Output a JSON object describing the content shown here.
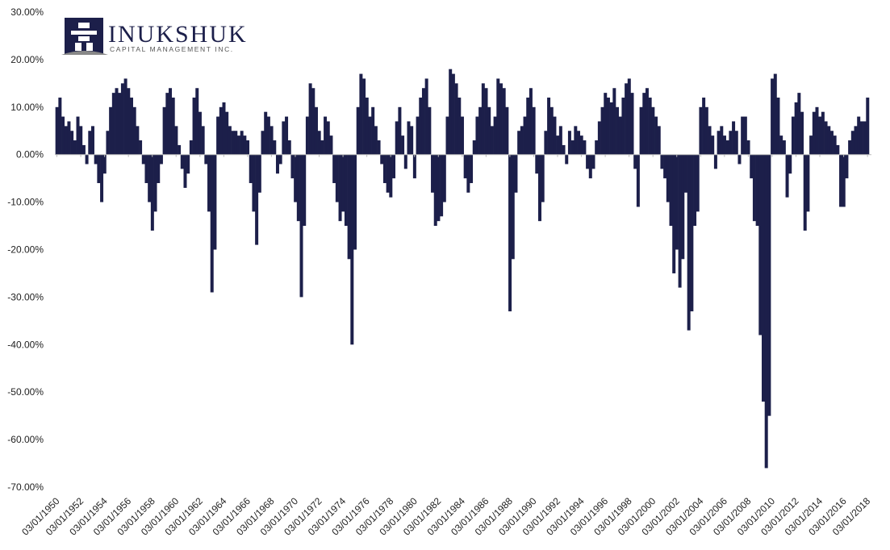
{
  "logo": {
    "name": "INUKSHUK",
    "tagline": "CAPITAL MANAGEMENT INC."
  },
  "chart_data": {
    "type": "bar",
    "color": "#1c1f4a",
    "xlim": [
      1950,
      2018.5
    ],
    "ylim": [
      -70,
      30
    ],
    "yticks": [
      {
        "value": 30,
        "label": "30.00%"
      },
      {
        "value": 20,
        "label": "20.00%"
      },
      {
        "value": 10,
        "label": "10.00%"
      },
      {
        "value": 0,
        "label": "0.00%"
      },
      {
        "value": -10,
        "label": "-10.00%"
      },
      {
        "value": -20,
        "label": "-20.00%"
      },
      {
        "value": -30,
        "label": "-30.00%"
      },
      {
        "value": -40,
        "label": "-40.00%"
      },
      {
        "value": -50,
        "label": "-50.00%"
      },
      {
        "value": -60,
        "label": "-60.00%"
      },
      {
        "value": -70,
        "label": "-70.00%"
      }
    ],
    "xticks": [
      {
        "value": 1950.17,
        "label": "03/01/1950"
      },
      {
        "value": 1952.17,
        "label": "03/01/1952"
      },
      {
        "value": 1954.17,
        "label": "03/01/1954"
      },
      {
        "value": 1956.17,
        "label": "03/01/1956"
      },
      {
        "value": 1958.17,
        "label": "03/01/1958"
      },
      {
        "value": 1960.17,
        "label": "03/01/1960"
      },
      {
        "value": 1962.17,
        "label": "03/01/1962"
      },
      {
        "value": 1964.17,
        "label": "03/01/1964"
      },
      {
        "value": 1966.17,
        "label": "03/01/1966"
      },
      {
        "value": 1968.17,
        "label": "03/01/1968"
      },
      {
        "value": 1970.17,
        "label": "03/01/1970"
      },
      {
        "value": 1972.17,
        "label": "03/01/1972"
      },
      {
        "value": 1974.17,
        "label": "03/01/1974"
      },
      {
        "value": 1976.17,
        "label": "03/01/1976"
      },
      {
        "value": 1978.17,
        "label": "03/01/1978"
      },
      {
        "value": 1980.17,
        "label": "03/01/1980"
      },
      {
        "value": 1982.17,
        "label": "03/01/1982"
      },
      {
        "value": 1984.17,
        "label": "03/01/1984"
      },
      {
        "value": 1986.17,
        "label": "03/01/1986"
      },
      {
        "value": 1988.17,
        "label": "03/01/1988"
      },
      {
        "value": 1990.17,
        "label": "03/01/1990"
      },
      {
        "value": 1992.17,
        "label": "03/01/1992"
      },
      {
        "value": 1994.17,
        "label": "03/01/1994"
      },
      {
        "value": 1996.17,
        "label": "03/01/1996"
      },
      {
        "value": 1998.17,
        "label": "03/01/1998"
      },
      {
        "value": 2000.17,
        "label": "03/01/2000"
      },
      {
        "value": 2002.17,
        "label": "03/01/2002"
      },
      {
        "value": 2004.17,
        "label": "03/01/2004"
      },
      {
        "value": 2006.17,
        "label": "03/01/2006"
      },
      {
        "value": 2008.17,
        "label": "03/01/2008"
      },
      {
        "value": 2010.17,
        "label": "03/01/2010"
      },
      {
        "value": 2012.17,
        "label": "03/01/2012"
      },
      {
        "value": 2014.17,
        "label": "03/01/2014"
      },
      {
        "value": 2016.17,
        "label": "03/01/2016"
      },
      {
        "value": 2018.17,
        "label": "03/01/2018"
      }
    ],
    "x": [
      1950.17,
      1950.42,
      1950.67,
      1950.92,
      1951.17,
      1951.42,
      1951.67,
      1951.92,
      1952.17,
      1952.42,
      1952.67,
      1952.92,
      1953.17,
      1953.42,
      1953.67,
      1953.92,
      1954.17,
      1954.42,
      1954.67,
      1954.92,
      1955.17,
      1955.42,
      1955.67,
      1955.92,
      1956.17,
      1956.42,
      1956.67,
      1956.92,
      1957.17,
      1957.42,
      1957.67,
      1957.92,
      1958.17,
      1958.42,
      1958.67,
      1958.92,
      1959.17,
      1959.42,
      1959.67,
      1959.92,
      1960.17,
      1960.42,
      1960.67,
      1960.92,
      1961.17,
      1961.42,
      1961.67,
      1961.92,
      1962.17,
      1962.42,
      1962.67,
      1962.92,
      1963.17,
      1963.42,
      1963.67,
      1963.92,
      1964.17,
      1964.42,
      1964.67,
      1964.92,
      1965.17,
      1965.42,
      1965.67,
      1965.92,
      1966.17,
      1966.42,
      1966.67,
      1966.92,
      1967.17,
      1967.42,
      1967.67,
      1967.92,
      1968.17,
      1968.42,
      1968.67,
      1968.92,
      1969.17,
      1969.42,
      1969.67,
      1969.92,
      1970.17,
      1970.42,
      1970.67,
      1970.92,
      1971.17,
      1971.42,
      1971.67,
      1971.92,
      1972.17,
      1972.42,
      1972.67,
      1972.92,
      1973.17,
      1973.42,
      1973.67,
      1973.92,
      1974.17,
      1974.42,
      1974.67,
      1974.92,
      1975.17,
      1975.42,
      1975.67,
      1975.92,
      1976.17,
      1976.42,
      1976.67,
      1976.92,
      1977.17,
      1977.42,
      1977.67,
      1977.92,
      1978.17,
      1978.42,
      1978.67,
      1978.92,
      1979.17,
      1979.42,
      1979.67,
      1979.92,
      1980.17,
      1980.42,
      1980.67,
      1980.92,
      1981.17,
      1981.42,
      1981.67,
      1981.92,
      1982.17,
      1982.42,
      1982.67,
      1982.92,
      1983.17,
      1983.42,
      1983.67,
      1983.92,
      1984.17,
      1984.42,
      1984.67,
      1984.92,
      1985.17,
      1985.42,
      1985.67,
      1985.92,
      1986.17,
      1986.42,
      1986.67,
      1986.92,
      1987.17,
      1987.42,
      1987.67,
      1987.92,
      1988.17,
      1988.42,
      1988.67,
      1988.92,
      1989.17,
      1989.42,
      1989.67,
      1989.92,
      1990.17,
      1990.42,
      1990.67,
      1990.92,
      1991.17,
      1991.42,
      1991.67,
      1991.92,
      1992.17,
      1992.42,
      1992.67,
      1992.92,
      1993.17,
      1993.42,
      1993.67,
      1993.92,
      1994.17,
      1994.42,
      1994.67,
      1994.92,
      1995.17,
      1995.42,
      1995.67,
      1995.92,
      1996.17,
      1996.42,
      1996.67,
      1996.92,
      1997.17,
      1997.42,
      1997.67,
      1997.92,
      1998.17,
      1998.42,
      1998.67,
      1998.92,
      1999.17,
      1999.42,
      1999.67,
      1999.92,
      2000.17,
      2000.42,
      2000.67,
      2000.92,
      2001.17,
      2001.42,
      2001.67,
      2001.92,
      2002.17,
      2002.42,
      2002.67,
      2002.92,
      2003.17,
      2003.42,
      2003.67,
      2003.92,
      2004.17,
      2004.42,
      2004.67,
      2004.92,
      2005.17,
      2005.42,
      2005.67,
      2005.92,
      2006.17,
      2006.42,
      2006.67,
      2006.92,
      2007.17,
      2007.42,
      2007.67,
      2007.92,
      2008.17,
      2008.42,
      2008.67,
      2008.92,
      2009.17,
      2009.42,
      2009.67,
      2009.92,
      2010.17,
      2010.42,
      2010.67,
      2010.92,
      2011.17,
      2011.42,
      2011.67,
      2011.92,
      2012.17,
      2012.42,
      2012.67,
      2012.92,
      2013.17,
      2013.42,
      2013.67,
      2013.92,
      2014.17,
      2014.42,
      2014.67,
      2014.92,
      2015.17,
      2015.42,
      2015.67,
      2015.92,
      2016.17,
      2016.42,
      2016.67,
      2016.92,
      2017.17,
      2017.42,
      2017.67,
      2017.92,
      2018.17
    ],
    "values": [
      10,
      12,
      8,
      6,
      7,
      5,
      3,
      8,
      6,
      2,
      -2,
      5,
      6,
      -2,
      -6,
      -10,
      -4,
      5,
      10,
      13,
      14,
      13,
      15,
      16,
      14,
      12,
      10,
      6,
      3,
      -2,
      -6,
      -10,
      -16,
      -12,
      -6,
      -2,
      10,
      13,
      14,
      12,
      6,
      2,
      -3,
      -7,
      -4,
      3,
      12,
      14,
      9,
      6,
      -2,
      -12,
      -29,
      -20,
      8,
      10,
      11,
      9,
      6,
      5,
      5,
      4,
      5,
      4,
      3,
      -6,
      -12,
      -19,
      -8,
      5,
      9,
      8,
      6,
      3,
      -4,
      -2,
      7,
      8,
      3,
      -5,
      -10,
      -14,
      -30,
      -15,
      8,
      15,
      14,
      10,
      5,
      3,
      8,
      7,
      4,
      -6,
      -10,
      -14,
      -12,
      -15,
      -22,
      -40,
      -20,
      10,
      17,
      16,
      12,
      8,
      10,
      6,
      3,
      -2,
      -6,
      -8,
      -9,
      -5,
      7,
      10,
      4,
      -3,
      7,
      6,
      -5,
      8,
      12,
      14,
      16,
      10,
      -8,
      -15,
      -14,
      -13,
      -10,
      8,
      18,
      17,
      15,
      12,
      8,
      -5,
      -8,
      -6,
      3,
      8,
      10,
      15,
      14,
      10,
      6,
      8,
      16,
      15,
      14,
      10,
      -33,
      -22,
      -8,
      5,
      6,
      8,
      12,
      14,
      10,
      -4,
      -14,
      -10,
      5,
      12,
      10,
      8,
      4,
      6,
      2,
      -2,
      5,
      3,
      6,
      5,
      4,
      3,
      -3,
      -5,
      -3,
      3,
      7,
      10,
      13,
      12,
      11,
      14,
      10,
      8,
      12,
      15,
      16,
      13,
      -3,
      -11,
      10,
      13,
      14,
      12,
      10,
      8,
      6,
      -3,
      -5,
      -10,
      -15,
      -25,
      -20,
      -28,
      -22,
      -8,
      -37,
      -33,
      -15,
      -12,
      10,
      12,
      10,
      6,
      4,
      -3,
      5,
      6,
      4,
      3,
      5,
      7,
      5,
      -2,
      8,
      8,
      3,
      -5,
      -14,
      -15,
      -38,
      -52,
      -66,
      -55,
      16,
      17,
      12,
      4,
      3,
      -9,
      -4,
      8,
      11,
      13,
      9,
      -16,
      -12,
      4,
      9,
      10,
      8,
      9,
      7,
      6,
      5,
      4,
      2,
      -11,
      -11,
      -5,
      3,
      5,
      6,
      8,
      7,
      7,
      12
    ]
  }
}
